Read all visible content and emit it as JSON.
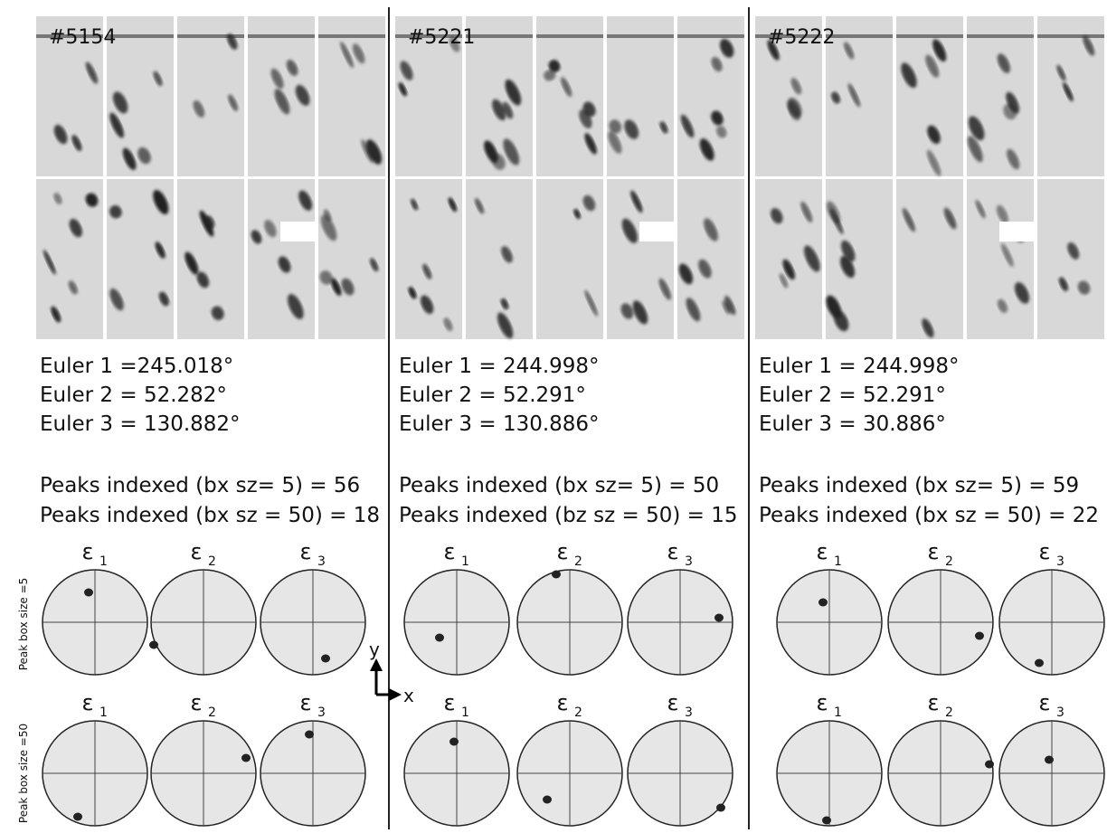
{
  "panels": [
    {
      "id": "#5154",
      "euler": [
        "Euler 1 =245.018°",
        "Euler 2 =  52.282°",
        "Euler 3 = 130.882°"
      ],
      "peaks": [
        "Peaks indexed (bx sz= 5) = 56",
        "Peaks indexed (bx sz = 50) = 18"
      ]
    },
    {
      "id": "#5221",
      "euler": [
        "Euler 1 = 244.998°",
        "Euler 2 =  52.291°",
        "Euler 3 =  130.886°"
      ],
      "peaks": [
        "Peaks indexed (bx sz= 5) = 50",
        "Peaks indexed (bz sz = 50) = 15"
      ]
    },
    {
      "id": "#5222",
      "euler": [
        "Euler 1 = 244.998°",
        "Euler 2 =  52.291°",
        "Euler 3 = 30.886°"
      ],
      "peaks": [
        "Peaks indexed (bx sz= 5) = 59",
        "Peaks indexed (bx sz = 50) = 22"
      ]
    }
  ],
  "pole_labels": [
    {
      "symbol": "ε",
      "sub": "1"
    },
    {
      "symbol": "ε",
      "sub": "2"
    },
    {
      "symbol": "ε",
      "sub": "3"
    }
  ],
  "row_labels": [
    "Peak box size =5",
    "Peak box size =50"
  ],
  "axes": {
    "y": "y",
    "x": "x"
  }
}
